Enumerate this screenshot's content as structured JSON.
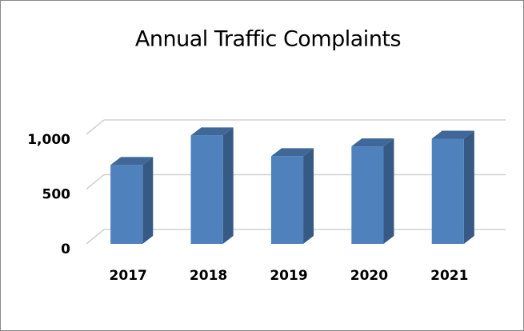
{
  "chart_data": {
    "type": "bar",
    "title": "Annual Traffic Complaints",
    "categories": [
      "2017",
      "2018",
      "2019",
      "2020",
      "2021"
    ],
    "values": [
      720,
      990,
      800,
      890,
      960
    ],
    "color": "#4f81bd",
    "ylim": [
      0,
      1000
    ],
    "yticks": [
      0,
      500,
      {
        "value": 1000,
        "label": "1,000"
      }
    ],
    "grid": true
  }
}
